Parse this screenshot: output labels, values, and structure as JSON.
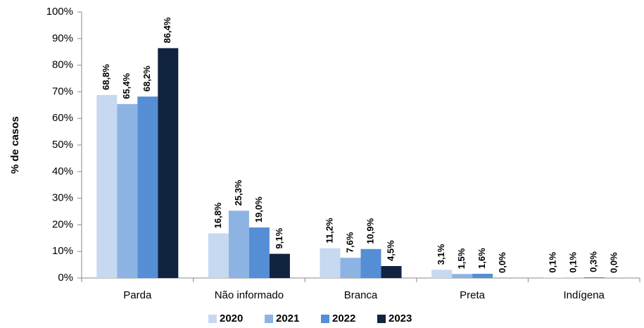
{
  "chart_data": {
    "type": "bar",
    "y_label": "% de casos",
    "categories": [
      "Parda",
      "Não informado",
      "Branca",
      "Preta",
      "Indígena"
    ],
    "series": [
      {
        "name": "2020",
        "color": "#c6d9f0",
        "values": [
          68.8,
          16.8,
          11.2,
          3.1,
          0.1
        ],
        "value_labels": [
          "68,8%",
          "16,8%",
          "11,2%",
          "3,1%",
          "0,1%"
        ]
      },
      {
        "name": "2021",
        "color": "#8db3e2",
        "values": [
          65.4,
          25.3,
          7.6,
          1.5,
          0.1
        ],
        "value_labels": [
          "65,4%",
          "25,3%",
          "7,6%",
          "1,5%",
          "0,1%"
        ]
      },
      {
        "name": "2022",
        "color": "#558ed5",
        "values": [
          68.2,
          19.0,
          10.9,
          1.6,
          0.3
        ],
        "value_labels": [
          "68,2%",
          "19,0%",
          "10,9%",
          "1,6%",
          "0,3%"
        ]
      },
      {
        "name": "2023",
        "color": "#10243f",
        "values": [
          86.4,
          9.1,
          4.5,
          0.0,
          0.0
        ],
        "value_labels": [
          "86,4%",
          "9,1%",
          "4,5%",
          "0,0%",
          "0,0%"
        ]
      }
    ],
    "ylim": [
      0,
      100
    ],
    "yticks": [
      {
        "value": 0,
        "label": "0%"
      },
      {
        "value": 10,
        "label": "10%"
      },
      {
        "value": 20,
        "label": "20%"
      },
      {
        "value": 30,
        "label": "30%"
      },
      {
        "value": 40,
        "label": "40%"
      },
      {
        "value": 50,
        "label": "50%"
      },
      {
        "value": 60,
        "label": "60%"
      },
      {
        "value": 70,
        "label": "70%"
      },
      {
        "value": 80,
        "label": "80%"
      },
      {
        "value": 90,
        "label": "90%"
      },
      {
        "value": 100,
        "label": "100%"
      }
    ],
    "grid": false,
    "legend": "bottom"
  }
}
